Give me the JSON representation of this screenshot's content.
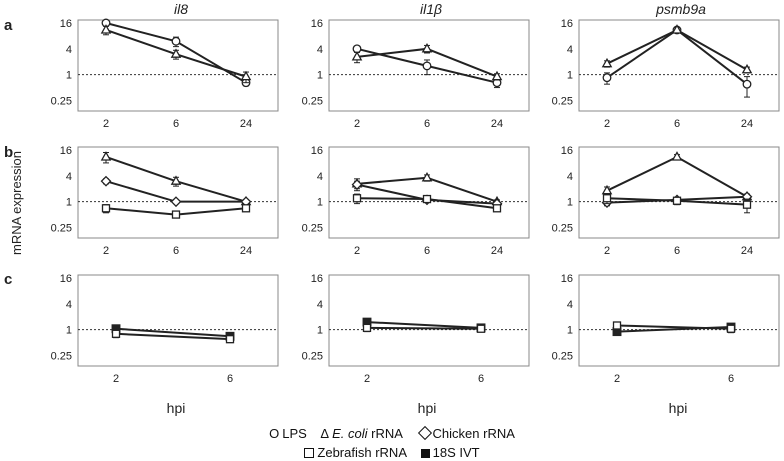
{
  "row_labels": [
    "a",
    "b",
    "c"
  ],
  "columns": [
    {
      "gene": "il8"
    },
    {
      "gene": "il1β"
    },
    {
      "gene": "psmb9a"
    }
  ],
  "ylabel": "mRNA expression",
  "xlabel": "hpi",
  "legend": [
    {
      "symbol": "O",
      "name": "LPS"
    },
    {
      "symbol": "Δ",
      "prefix_italic": "E. coli",
      "name": " rRNA"
    },
    {
      "symbol": "diamond",
      "name": "Chicken rRNA"
    },
    {
      "symbol": "open-square",
      "name": "Zebrafish rRNA"
    },
    {
      "symbol": "filled-square",
      "name": "18S IVT"
    }
  ],
  "colors": {
    "lines": "#222222",
    "frame": "#888888",
    "baseline": "#333333"
  },
  "chart_data": [
    {
      "type": "line",
      "row": "a",
      "gene": "il8",
      "scale": "log2",
      "yticks": [
        "16",
        "4",
        "1",
        "0.25"
      ],
      "xticks": [
        "2",
        "6",
        "24"
      ],
      "baseline": 1,
      "series": [
        {
          "marker": "circle",
          "values": [
            16,
            6,
            0.65
          ],
          "err": [
            2.5,
            1.5,
            0.1
          ]
        },
        {
          "marker": "triangle",
          "values": [
            11,
            3,
            0.9
          ],
          "err": [
            2.5,
            0.7,
            0.25
          ]
        }
      ]
    },
    {
      "type": "line",
      "row": "a",
      "gene": "il1β",
      "scale": "log2",
      "yticks": [
        "16",
        "4",
        "1",
        "0.25"
      ],
      "xticks": [
        "2",
        "6",
        "24"
      ],
      "baseline": 1,
      "series": [
        {
          "marker": "circle",
          "values": [
            4,
            1.6,
            0.65
          ],
          "err": [
            0.4,
            0.6,
            0.15
          ]
        },
        {
          "marker": "triangle",
          "values": [
            2.6,
            4,
            0.9
          ],
          "err": [
            0.7,
            0.8,
            0.15
          ]
        }
      ]
    },
    {
      "type": "line",
      "row": "a",
      "gene": "psmb9a",
      "scale": "log2",
      "yticks": [
        "16",
        "4",
        "1",
        "0.25"
      ],
      "xticks": [
        "2",
        "6",
        "24"
      ],
      "baseline": 1,
      "series": [
        {
          "marker": "circle",
          "values": [
            0.85,
            11,
            0.6
          ],
          "err": [
            0.25,
            1.5,
            0.3
          ]
        },
        {
          "marker": "triangle",
          "values": [
            1.8,
            11,
            1.3
          ],
          "err": [
            0.3,
            1.5,
            0.2
          ]
        }
      ]
    },
    {
      "type": "line",
      "row": "b",
      "gene": "il8",
      "scale": "log2",
      "yticks": [
        "16",
        "4",
        "1",
        "0.25"
      ],
      "xticks": [
        "2",
        "6",
        "24"
      ],
      "baseline": 1,
      "series": [
        {
          "marker": "triangle",
          "values": [
            11,
            3,
            1
          ],
          "err": [
            3,
            0.7,
            0.1
          ]
        },
        {
          "marker": "diamond",
          "values": [
            3,
            1,
            1
          ],
          "err": [
            0.4,
            0.1,
            0.1
          ]
        },
        {
          "marker": "square",
          "values": [
            0.7,
            0.5,
            0.7
          ],
          "err": [
            0.15,
            0.05,
            0.1
          ]
        }
      ]
    },
    {
      "type": "line",
      "row": "b",
      "gene": "il1β",
      "scale": "log2",
      "yticks": [
        "16",
        "4",
        "1",
        "0.25"
      ],
      "xticks": [
        "2",
        "6",
        "24"
      ],
      "baseline": 1,
      "series": [
        {
          "marker": "triangle",
          "values": [
            2.6,
            3.6,
            1
          ],
          "err": [
            0.8,
            0.6,
            0.1
          ]
        },
        {
          "marker": "diamond",
          "values": [
            2.5,
            1.1,
            0.9
          ],
          "err": [
            0.5,
            0.1,
            0.1
          ]
        },
        {
          "marker": "square",
          "values": [
            1.2,
            1.15,
            0.7
          ],
          "err": [
            0.3,
            0.1,
            0.05
          ]
        }
      ]
    },
    {
      "type": "line",
      "row": "b",
      "gene": "psmb9a",
      "scale": "log2",
      "yticks": [
        "16",
        "4",
        "1",
        "0.25"
      ],
      "xticks": [
        "2",
        "6",
        "24"
      ],
      "baseline": 1,
      "series": [
        {
          "marker": "triangle",
          "values": [
            1.8,
            11,
            1.3
          ],
          "err": [
            0.4,
            1.5,
            0.2
          ]
        },
        {
          "marker": "diamond",
          "values": [
            0.95,
            1.1,
            1.3
          ],
          "err": [
            0.15,
            0.1,
            0.2
          ]
        },
        {
          "marker": "square",
          "values": [
            1.2,
            1.05,
            0.85
          ],
          "err": [
            0.3,
            0.2,
            0.3
          ]
        }
      ]
    },
    {
      "type": "line",
      "row": "c",
      "gene": "il8",
      "scale": "log2",
      "yticks": [
        "16",
        "4",
        "1",
        "0.25"
      ],
      "xticks": [
        "2",
        "6"
      ],
      "baseline": 1,
      "series": [
        {
          "marker": "filled-square",
          "values": [
            1.05,
            0.7
          ],
          "err": [
            0.15,
            0.1
          ]
        },
        {
          "marker": "square",
          "values": [
            0.8,
            0.6
          ],
          "err": [
            0.15,
            0.1
          ]
        }
      ]
    },
    {
      "type": "line",
      "row": "c",
      "gene": "il1β",
      "scale": "log2",
      "yticks": [
        "16",
        "4",
        "1",
        "0.25"
      ],
      "xticks": [
        "2",
        "6"
      ],
      "baseline": 1,
      "series": [
        {
          "marker": "filled-square",
          "values": [
            1.5,
            1.1
          ],
          "err": [
            0.2,
            0.15
          ]
        },
        {
          "marker": "square",
          "values": [
            1.1,
            1.05
          ],
          "err": [
            0.2,
            0.15
          ]
        }
      ]
    },
    {
      "type": "line",
      "row": "c",
      "gene": "psmb9a",
      "scale": "log2",
      "yticks": [
        "16",
        "4",
        "1",
        "0.25"
      ],
      "xticks": [
        "2",
        "6"
      ],
      "baseline": 1,
      "series": [
        {
          "marker": "filled-square",
          "values": [
            0.9,
            1.15
          ],
          "err": [
            0.15,
            0.2
          ]
        },
        {
          "marker": "square",
          "values": [
            1.25,
            1.05
          ],
          "err": [
            0.15,
            0.2
          ]
        }
      ]
    }
  ]
}
